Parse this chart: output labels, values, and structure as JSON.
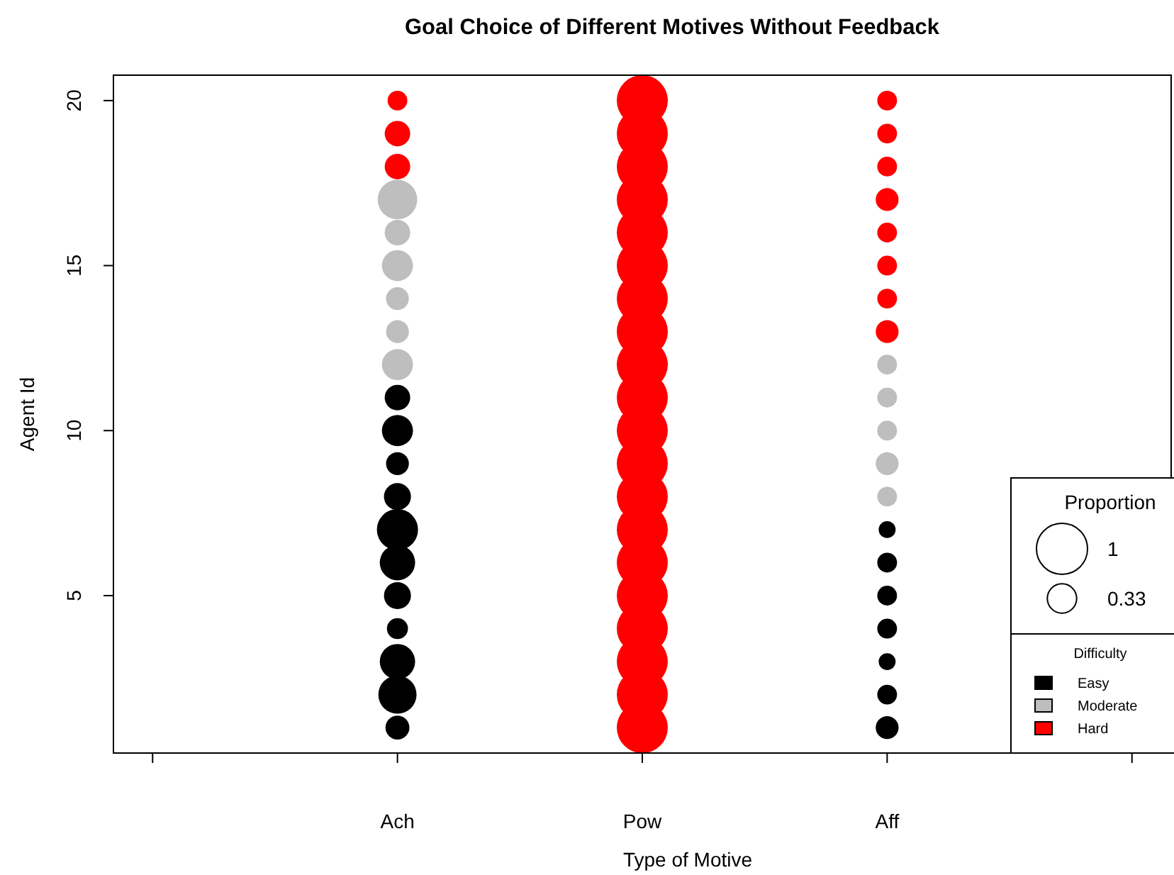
{
  "chart_data": {
    "type": "bubble",
    "title": "Goal Choice of Different Motives Without Feedback",
    "xlabel": "Type of Motive",
    "ylabel": "Agent Id",
    "legend_title": "Difficulty",
    "annotations": [
      "Proportion"
    ],
    "categories": [
      null,
      "Ach",
      "Pow",
      "Aff",
      null
    ],
    "ylim": [
      0.23,
      20.77
    ],
    "yticks": [
      5,
      10,
      15,
      20
    ],
    "grid": false,
    "legend": "bottom right",
    "marker": "circle",
    "size_legend": [
      1,
      0.33
    ],
    "series": [
      {
        "name": "Easy",
        "color": "#000000",
        "x": [
          "Ach",
          "Ach",
          "Ach",
          "Ach",
          "Ach",
          "Ach",
          "Ach",
          "Ach",
          "Ach",
          "Ach",
          "Ach",
          "Aff",
          "Aff",
          "Aff",
          "Aff",
          "Aff",
          "Aff",
          "Aff"
        ],
        "values": [
          1,
          2,
          3,
          4,
          5,
          6,
          7,
          8,
          9,
          10,
          11,
          1,
          2,
          3,
          4,
          5,
          6,
          7
        ],
        "sizes": [
          0.22,
          0.56,
          0.48,
          0.17,
          0.28,
          0.48,
          0.65,
          0.28,
          0.2,
          0.37,
          0.25,
          0.2,
          0.15,
          0.11,
          0.15,
          0.15,
          0.15,
          0.11
        ]
      },
      {
        "name": "Moderate",
        "color": "#bebebe",
        "x": [
          "Ach",
          "Ach",
          "Ach",
          "Ach",
          "Ach",
          "Ach",
          "Aff",
          "Aff",
          "Aff",
          "Aff",
          "Aff"
        ],
        "values": [
          12,
          13,
          14,
          15,
          16,
          17,
          8,
          9,
          10,
          11,
          12
        ],
        "sizes": [
          0.37,
          0.2,
          0.2,
          0.37,
          0.25,
          0.6,
          0.15,
          0.2,
          0.15,
          0.15,
          0.15
        ]
      },
      {
        "name": "Hard",
        "color": "#ff0000",
        "x": [
          "Ach",
          "Ach",
          "Ach",
          "Pow",
          "Pow",
          "Pow",
          "Pow",
          "Pow",
          "Pow",
          "Pow",
          "Pow",
          "Pow",
          "Pow",
          "Pow",
          "Pow",
          "Pow",
          "Pow",
          "Pow",
          "Pow",
          "Pow",
          "Pow",
          "Pow",
          "Pow",
          "Aff",
          "Aff",
          "Aff",
          "Aff",
          "Aff",
          "Aff",
          "Aff",
          "Aff"
        ],
        "values": [
          18,
          19,
          20,
          1,
          2,
          3,
          4,
          5,
          6,
          7,
          8,
          9,
          10,
          11,
          12,
          13,
          14,
          15,
          16,
          17,
          18,
          19,
          20,
          13,
          14,
          15,
          16,
          17,
          18,
          19,
          20
        ],
        "sizes": [
          0.25,
          0.25,
          0.15,
          1,
          1,
          1,
          1,
          1,
          1,
          1,
          1,
          1,
          1,
          1,
          1,
          1,
          1,
          1,
          1,
          1,
          1,
          1,
          1,
          0.2,
          0.15,
          0.15,
          0.15,
          0.2,
          0.15,
          0.15,
          0.15
        ]
      }
    ]
  }
}
